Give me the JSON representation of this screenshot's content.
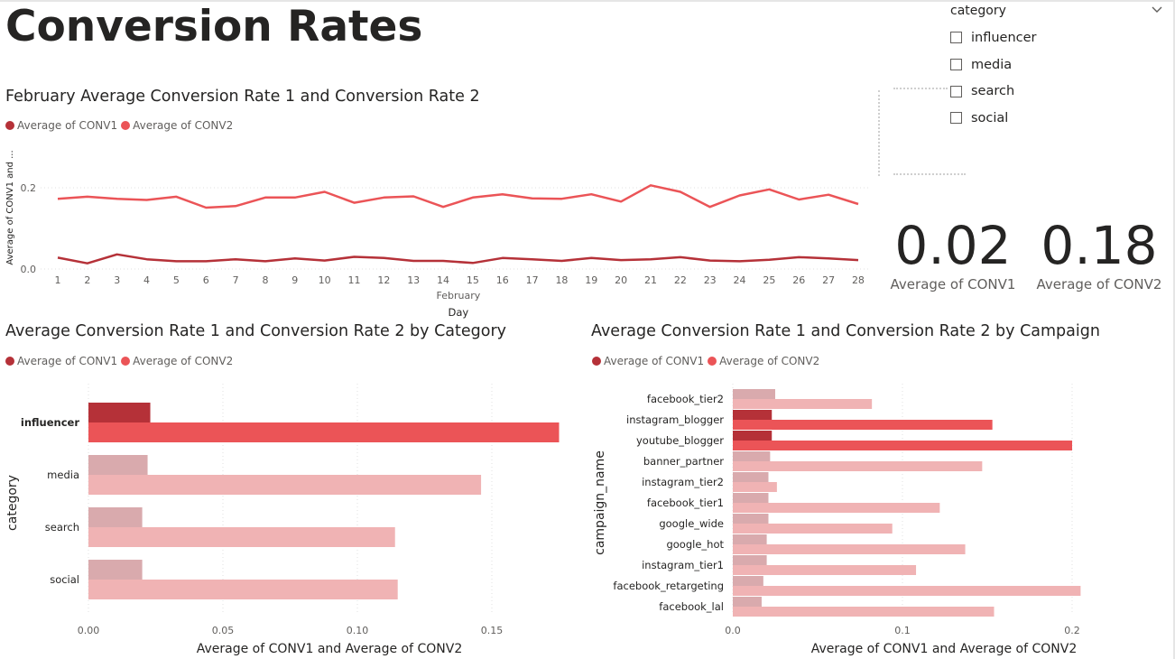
{
  "page": {
    "title": "Conversion Rates"
  },
  "colors": {
    "conv1": "#b53138",
    "conv2": "#eb5457",
    "conv1_faded": "#d9aaad",
    "conv2_faded": "#f0b3b4"
  },
  "slicer": {
    "title": "category",
    "options": [
      "influencer",
      "media",
      "search",
      "social"
    ]
  },
  "cards": [
    {
      "value": "0.02",
      "label": "Average of CONV1"
    },
    {
      "value": "0.18",
      "label": "Average of CONV2"
    }
  ],
  "line_chart": {
    "title": "February Average Conversion Rate 1 and Conversion Rate 2",
    "legend": [
      "Average of CONV1",
      "Average of CONV2"
    ]
  },
  "category_chart": {
    "title": "Average Conversion Rate 1 and Conversion Rate 2 by Category",
    "legend": [
      "Average of CONV1",
      "Average of CONV2"
    ]
  },
  "campaign_chart": {
    "title": "Average Conversion Rate 1 and Conversion Rate 2 by Campaign",
    "legend": [
      "Average of CONV1",
      "Average of CONV2"
    ]
  },
  "chart_data": [
    {
      "type": "line",
      "title": "February Average Conversion Rate 1 and Conversion Rate 2",
      "xlabel": "Day",
      "xlabel_group": "February",
      "ylabel": "Average of CONV1 and ...",
      "ylim": [
        0,
        0.22
      ],
      "yticks": [
        "0.0",
        "0.2"
      ],
      "x": [
        1,
        2,
        3,
        4,
        5,
        6,
        7,
        8,
        9,
        10,
        11,
        12,
        13,
        14,
        15,
        16,
        17,
        18,
        19,
        20,
        21,
        22,
        23,
        24,
        25,
        26,
        27,
        28
      ],
      "series": [
        {
          "name": "Average of CONV1",
          "values": [
            0.028,
            0.014,
            0.036,
            0.024,
            0.019,
            0.019,
            0.024,
            0.019,
            0.026,
            0.021,
            0.03,
            0.027,
            0.02,
            0.02,
            0.015,
            0.027,
            0.024,
            0.02,
            0.027,
            0.022,
            0.024,
            0.029,
            0.021,
            0.019,
            0.023,
            0.029,
            0.026,
            0.022
          ]
        },
        {
          "name": "Average of CONV2",
          "values": [
            0.173,
            0.178,
            0.173,
            0.17,
            0.178,
            0.151,
            0.155,
            0.176,
            0.176,
            0.19,
            0.163,
            0.176,
            0.179,
            0.153,
            0.176,
            0.184,
            0.174,
            0.173,
            0.184,
            0.166,
            0.206,
            0.19,
            0.153,
            0.181,
            0.196,
            0.171,
            0.183,
            0.16
          ]
        }
      ]
    },
    {
      "type": "bar",
      "orientation": "horizontal",
      "title": "Average Conversion Rate 1 and Conversion Rate 2 by Category",
      "xlabel": "Average of CONV1 and Average of CONV2",
      "ylabel": "category",
      "xlim": [
        0,
        0.17
      ],
      "xticks": [
        "0.00",
        "0.05",
        "0.10",
        "0.15"
      ],
      "categories": [
        "influencer",
        "media",
        "search",
        "social"
      ],
      "highlighted": "influencer",
      "series": [
        {
          "name": "Average of CONV1",
          "values": [
            0.023,
            0.022,
            0.02,
            0.02
          ]
        },
        {
          "name": "Average of CONV2",
          "values": [
            0.175,
            0.146,
            0.114,
            0.115
          ]
        }
      ]
    },
    {
      "type": "bar",
      "orientation": "horizontal",
      "title": "Average Conversion Rate 1 and Conversion Rate 2 by Campaign",
      "xlabel": "Average of CONV1 and Average of CONV2",
      "ylabel": "campaign_name",
      "xlim": [
        0,
        0.2
      ],
      "xticks": [
        "0.0",
        "0.1",
        "0.2"
      ],
      "categories": [
        "facebook_tier2",
        "instagram_blogger",
        "youtube_blogger",
        "banner_partner",
        "instagram_tier2",
        "facebook_tier1",
        "google_wide",
        "google_hot",
        "instagram_tier1",
        "facebook_retargeting",
        "facebook_lal"
      ],
      "highlighted": [
        "instagram_blogger",
        "youtube_blogger"
      ],
      "series": [
        {
          "name": "Average of CONV1",
          "values": [
            0.025,
            0.023,
            0.023,
            0.022,
            0.021,
            0.021,
            0.021,
            0.02,
            0.02,
            0.018,
            0.017
          ]
        },
        {
          "name": "Average of CONV2",
          "values": [
            0.082,
            0.153,
            0.2,
            0.147,
            0.026,
            0.122,
            0.094,
            0.137,
            0.108,
            0.205,
            0.154
          ]
        }
      ]
    }
  ]
}
